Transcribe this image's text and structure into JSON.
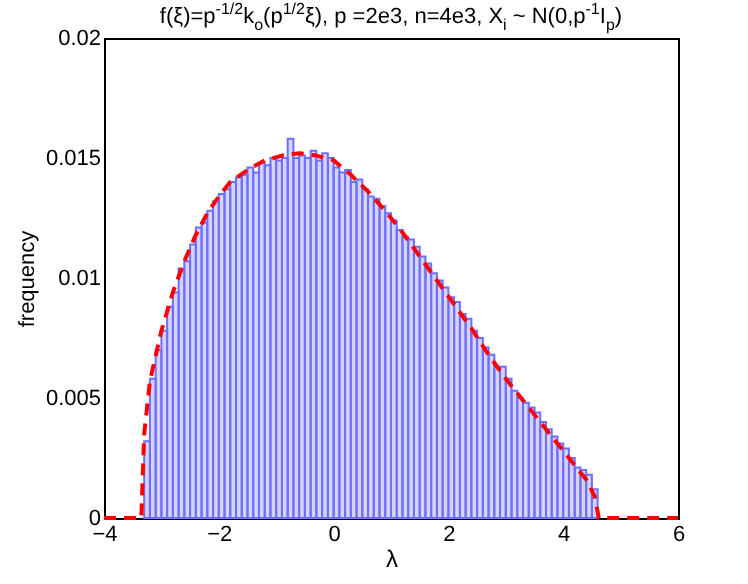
{
  "chart_data": {
    "type": "histogram",
    "title": "f(ξ)=p$^{-1/2}$k$_{o}$(p$^{1/2}$ξ), p =2e3, n=4e3, X$_{i}$ ~ N(0,p$^{-1}$I$_{p}$)",
    "xlabel": "λ",
    "ylabel": "frequency",
    "xlim": [
      -4,
      6
    ],
    "xticks": [
      -4,
      -2,
      0,
      2,
      4,
      6
    ],
    "ylim": [
      0,
      0.02
    ],
    "yticks": [
      {
        "value": 0,
        "label": "0"
      },
      0.005,
      {
        "value": 0.01,
        "label": "0.01"
      },
      0.015,
      {
        "value": 0.02,
        "label": "0.02"
      }
    ],
    "series": [
      {
        "color": "#6f6fff",
        "bins": [
          -3.3,
          -3.2,
          -3.1,
          -3.0,
          -2.9,
          -2.8,
          -2.7,
          -2.6,
          -2.5,
          -2.4,
          -2.3,
          -2.2,
          -2.1,
          -2.0,
          -1.9,
          -1.8,
          -1.7,
          -1.6,
          -1.5,
          -1.4,
          -1.3,
          -1.2,
          -1.1,
          -1.0,
          -0.9,
          -0.8,
          -0.7,
          -0.6,
          -0.5,
          -0.4,
          -0.3,
          -0.2,
          -0.1,
          0.0,
          0.1,
          0.2,
          0.3,
          0.4,
          0.5,
          0.6,
          0.7,
          0.8,
          0.9,
          1.0,
          1.1,
          1.2,
          1.3,
          1.4,
          1.5,
          1.6,
          1.7,
          1.8,
          1.9,
          2.0,
          2.1,
          2.2,
          2.3,
          2.4,
          2.5,
          2.6,
          2.7,
          2.8,
          2.9,
          3.0,
          3.1,
          3.2,
          3.3,
          3.4,
          3.5,
          3.6,
          3.7,
          3.8,
          3.9,
          4.0,
          4.1,
          4.2,
          4.3,
          4.4,
          4.5,
          4.6
        ],
        "values": [
          0.0032,
          0.0058,
          0.007,
          0.0078,
          0.0088,
          0.0094,
          0.0104,
          0.0107,
          0.0114,
          0.0121,
          0.0123,
          0.0128,
          0.0132,
          0.0135,
          0.0137,
          0.014,
          0.0142,
          0.0143,
          0.0146,
          0.0144,
          0.0148,
          0.0147,
          0.015,
          0.0149,
          0.015,
          0.0158,
          0.015,
          0.0151,
          0.015,
          0.0153,
          0.0149,
          0.0152,
          0.015,
          0.0146,
          0.0144,
          0.0145,
          0.014,
          0.0141,
          0.0137,
          0.0134,
          0.0133,
          0.013,
          0.0127,
          0.0124,
          0.012,
          0.0117,
          0.0116,
          0.0113,
          0.0109,
          0.0106,
          0.0102,
          0.0099,
          0.0096,
          0.0092,
          0.009,
          0.0085,
          0.0083,
          0.0078,
          0.0075,
          0.0071,
          0.0068,
          0.0063,
          0.0063,
          0.0058,
          0.0053,
          0.005,
          0.0048,
          0.0046,
          0.0044,
          0.004,
          0.0037,
          0.0034,
          0.0031,
          0.0029,
          0.0025,
          0.0021,
          0.002,
          0.0018,
          0.0012
        ]
      },
      {
        "type": "line",
        "color": "#ff0000",
        "line_style": "dashed",
        "x": [
          -4,
          -3.35,
          -3.3,
          -3.2,
          -3.0,
          -2.8,
          -2.6,
          -2.4,
          -2.2,
          -2.0,
          -1.8,
          -1.5,
          -1.2,
          -0.9,
          -0.6,
          -0.3,
          0,
          0.3,
          0.6,
          0.9,
          1.2,
          1.5,
          1.8,
          2.1,
          2.4,
          2.7,
          3.0,
          3.3,
          3.6,
          3.9,
          4.2,
          4.4,
          4.55,
          4.62,
          6
        ],
        "values": [
          0,
          0,
          0.0035,
          0.0057,
          0.0078,
          0.0094,
          0.0107,
          0.0118,
          0.0127,
          0.0134,
          0.014,
          0.0145,
          0.0149,
          0.0151,
          0.0152,
          0.0151,
          0.0149,
          0.0143,
          0.0136,
          0.0128,
          0.0119,
          0.0109,
          0.0099,
          0.0089,
          0.0079,
          0.0068,
          0.0058,
          0.0049,
          0.004,
          0.0031,
          0.0022,
          0.0016,
          0.0009,
          0,
          0
        ]
      }
    ]
  }
}
